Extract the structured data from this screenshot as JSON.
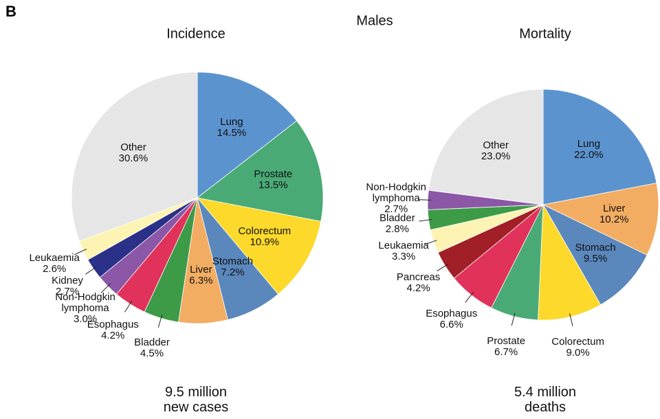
{
  "panel_label": "B",
  "title": "Males",
  "chart_data": [
    {
      "type": "pie",
      "title": "Incidence",
      "categories": [
        "Lung",
        "Prostate",
        "Colorectum",
        "Stomach",
        "Liver",
        "Bladder",
        "Esophagus",
        "Non-Hodgkin lymphoma",
        "Kidney",
        "Leukaemia",
        "Other"
      ],
      "values": [
        14.5,
        13.5,
        10.9,
        7.2,
        6.3,
        4.5,
        4.2,
        3.0,
        2.7,
        2.6,
        30.6
      ],
      "value_labels": [
        "14.5%",
        "13.5%",
        "10.9%",
        "7.2%",
        "6.3%",
        "4.5%",
        "4.2%",
        "3.0%",
        "2.7%",
        "2.6%",
        "30.6%"
      ],
      "colors": [
        "#5b93cf",
        "#4aaa76",
        "#fcd92a",
        "#5a87bc",
        "#f2ad62",
        "#3d9b48",
        "#e0325a",
        "#8b57a6",
        "#2b3088",
        "#fdf3b3",
        "#e6e6e6"
      ],
      "footnote": "9.5 million new cases"
    },
    {
      "type": "pie",
      "title": "Mortality",
      "categories": [
        "Lung",
        "Liver",
        "Stomach",
        "Colorectum",
        "Prostate",
        "Esophagus",
        "Pancreas",
        "Leukaemia",
        "Bladder",
        "Non-Hodgkin lymphoma",
        "Other"
      ],
      "values": [
        22.0,
        10.2,
        9.5,
        9.0,
        6.7,
        6.6,
        4.2,
        3.3,
        2.8,
        2.7,
        23.0
      ],
      "value_labels": [
        "22.0%",
        "10.2%",
        "9.5%",
        "9.0%",
        "6.7%",
        "6.6%",
        "4.2%",
        "3.3%",
        "2.8%",
        "2.7%",
        "23.0%"
      ],
      "colors": [
        "#5b93cf",
        "#f2ad62",
        "#5a87bc",
        "#fcd92a",
        "#4aaa76",
        "#e0325a",
        "#a11f26",
        "#fdf3b3",
        "#3d9b48",
        "#8b57a6",
        "#e6e6e6"
      ],
      "footnote": "5.4 million deaths"
    }
  ]
}
